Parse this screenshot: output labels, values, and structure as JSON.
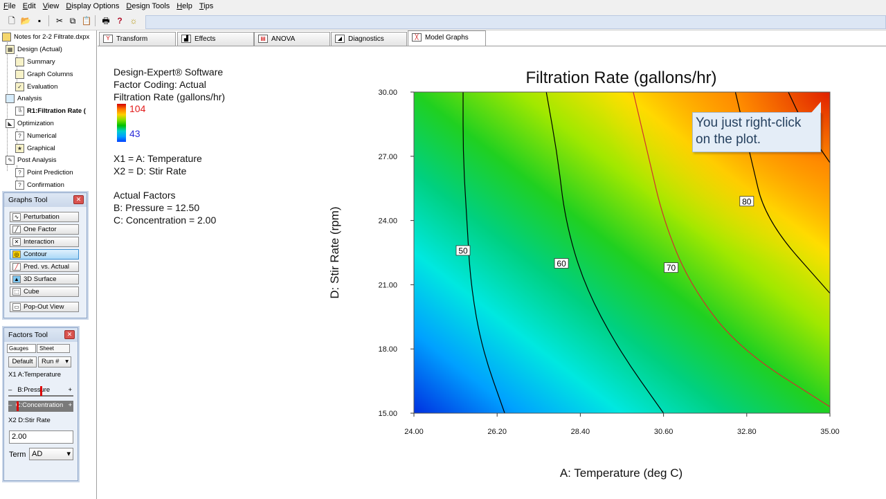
{
  "menu": [
    "File",
    "Edit",
    "View",
    "Display Options",
    "Design Tools",
    "Help",
    "Tips"
  ],
  "toolbar_icons": [
    "new-icon",
    "open-icon",
    "save-icon",
    "cut-icon",
    "copy-icon",
    "paste-icon",
    "print-icon",
    "help-icon",
    "tip-icon"
  ],
  "tree": {
    "root": "Notes for 2-2 Filtrate.dxpx",
    "items": [
      {
        "label": "Design (Actual)",
        "level": 1
      },
      {
        "label": "Summary",
        "level": 2
      },
      {
        "label": "Graph Columns",
        "level": 2
      },
      {
        "label": "Evaluation",
        "level": 2
      },
      {
        "label": "Analysis",
        "level": 1
      },
      {
        "label": "R1:Filtration Rate (",
        "level": 2,
        "bold": true
      },
      {
        "label": "Optimization",
        "level": 1
      },
      {
        "label": "Numerical",
        "level": 2
      },
      {
        "label": "Graphical",
        "level": 2
      },
      {
        "label": "Post Analysis",
        "level": 1
      },
      {
        "label": "Point Prediction",
        "level": 2
      },
      {
        "label": "Confirmation",
        "level": 2
      }
    ]
  },
  "graphs_tool": {
    "title": "Graphs Tool",
    "buttons": [
      "Perturbation",
      "One Factor",
      "Interaction",
      "Contour",
      "Pred. vs. Actual",
      "3D Surface",
      "Cube",
      "Pop-Out View"
    ],
    "active": "Contour"
  },
  "factors_tool": {
    "title": "Factors Tool",
    "tabs": [
      "Gauges",
      "Sheet"
    ],
    "default_btn": "Default",
    "run_select": "Run #",
    "rows": [
      {
        "tag": "X1",
        "label": "A:Temperature"
      },
      {
        "tag": "–",
        "label": "B:Pressure",
        "end": "+"
      },
      {
        "tag": "–",
        "label": "C:Concentration",
        "end": "+"
      },
      {
        "tag": "X2",
        "label": "D:Stir Rate"
      }
    ],
    "value": "2.00",
    "term_label": "Term",
    "term_value": "AD"
  },
  "tabs": [
    {
      "label": "Transform",
      "icon": "transform-icon"
    },
    {
      "label": "Effects",
      "icon": "effects-icon"
    },
    {
      "label": "ANOVA",
      "icon": "anova-icon"
    },
    {
      "label": "Diagnostics",
      "icon": "diagnostics-icon"
    },
    {
      "label": "Model Graphs",
      "icon": "model-graphs-icon",
      "active": true
    }
  ],
  "legend": {
    "lines": [
      "Design-Expert® Software",
      "Factor Coding: Actual",
      "Filtration Rate (gallons/hr)"
    ],
    "max": "104",
    "min": "43",
    "x1": "X1 = A: Temperature",
    "x2": "X2 = D: Stir Rate",
    "actual_heading": "Actual Factors",
    "actual_b": "B: Pressure = 12.50",
    "actual_c": "C: Concentration = 2.00"
  },
  "callout": "You just right-click on the plot.",
  "chart_data": {
    "type": "heatmap",
    "title": "Filtration Rate (gallons/hr)",
    "xlabel": "A: Temperature (deg C)",
    "ylabel": "D: Stir Rate (rpm)",
    "xlim": [
      24.0,
      35.0
    ],
    "ylim": [
      15.0,
      30.0
    ],
    "x_ticks": [
      "24.00",
      "26.20",
      "28.40",
      "30.60",
      "32.80",
      "35.00"
    ],
    "y_ticks": [
      "15.00",
      "18.00",
      "21.00",
      "24.00",
      "27.00",
      "30.00"
    ],
    "colorscale": [
      "#0030e0",
      "#00a0ff",
      "#00e8e0",
      "#00d080",
      "#20d020",
      "#a0e800",
      "#ffe000",
      "#ff8000",
      "#e02000"
    ],
    "color_range": [
      43,
      104
    ],
    "contours": [
      {
        "level": 50,
        "label": "50",
        "color": "#000000",
        "points": [
          [
            25.3,
            30.0
          ],
          [
            25.3,
            27.0
          ],
          [
            25.4,
            24.0
          ],
          [
            25.5,
            21.0
          ],
          [
            25.8,
            18.0
          ],
          [
            26.4,
            15.0
          ]
        ],
        "label_at": [
          25.3,
          22.6
        ]
      },
      {
        "level": 60,
        "label": "60",
        "color": "#000000",
        "points": [
          [
            27.5,
            30.0
          ],
          [
            27.8,
            27.0
          ],
          [
            28.0,
            24.0
          ],
          [
            28.5,
            21.0
          ],
          [
            29.4,
            18.0
          ],
          [
            30.6,
            15.0
          ]
        ],
        "label_at": [
          27.9,
          22.0
        ]
      },
      {
        "level": 70,
        "label": "70",
        "color": "#d03030",
        "points": [
          [
            29.8,
            30.0
          ],
          [
            30.2,
            27.0
          ],
          [
            30.6,
            24.0
          ],
          [
            31.3,
            21.0
          ],
          [
            32.6,
            18.0
          ],
          [
            35.0,
            15.3
          ]
        ],
        "label_at": [
          30.8,
          21.8
        ]
      },
      {
        "level": 80,
        "label": "80",
        "color": "#000000",
        "points": [
          [
            32.5,
            30.0
          ],
          [
            32.9,
            27.0
          ],
          [
            33.3,
            24.0
          ],
          [
            35.0,
            20.6
          ]
        ],
        "label_at": [
          32.8,
          24.9
        ]
      },
      {
        "level": 90,
        "label": "",
        "color": "#000000",
        "points": [
          [
            33.9,
            30.0
          ],
          [
            34.3,
            28.5
          ],
          [
            35.0,
            26.7
          ]
        ]
      }
    ]
  }
}
